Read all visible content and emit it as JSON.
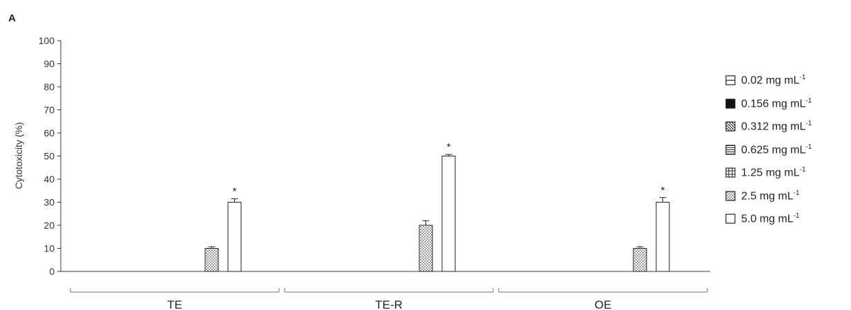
{
  "panel_label": "A",
  "chart_data": {
    "type": "bar",
    "ylabel": "Cytotoxicity (%)",
    "ylim": [
      0,
      100
    ],
    "yticks": [
      0,
      10,
      20,
      30,
      40,
      50,
      60,
      70,
      80,
      90,
      100
    ],
    "categories": [
      "TE",
      "TE-R",
      "OE"
    ],
    "legend_position": "right",
    "series": [
      {
        "name": "0.02 mg mL-1",
        "unit_base": "0.02 mg mL",
        "unit_sup": "-1",
        "pattern": "hline",
        "values": [
          0,
          0,
          0
        ],
        "errors": [
          0,
          0,
          0
        ],
        "significant": [
          false,
          false,
          false
        ]
      },
      {
        "name": "0.156 mg mL-1",
        "unit_base": "0.156 mg mL",
        "unit_sup": "-1",
        "pattern": "solid",
        "values": [
          0,
          0,
          0
        ],
        "errors": [
          0,
          0,
          0
        ],
        "significant": [
          false,
          false,
          false
        ]
      },
      {
        "name": "0.312 mg mL-1",
        "unit_base": "0.312 mg mL",
        "unit_sup": "-1",
        "pattern": "diag",
        "values": [
          0,
          0,
          0
        ],
        "errors": [
          0,
          0,
          0
        ],
        "significant": [
          false,
          false,
          false
        ]
      },
      {
        "name": "0.625 mg mL-1",
        "unit_base": "0.625 mg mL",
        "unit_sup": "-1",
        "pattern": "hlines-dense",
        "values": [
          0,
          0,
          0
        ],
        "errors": [
          0,
          0,
          0
        ],
        "significant": [
          false,
          false,
          false
        ]
      },
      {
        "name": "1.25 mg mL-1",
        "unit_base": "1.25 mg mL",
        "unit_sup": "-1",
        "pattern": "grid",
        "values": [
          0,
          0,
          0
        ],
        "errors": [
          0,
          0,
          0
        ],
        "significant": [
          false,
          false,
          false
        ]
      },
      {
        "name": "2.5 mg mL-1",
        "unit_base": "2.5 mg mL",
        "unit_sup": "-1",
        "pattern": "dots",
        "values": [
          10,
          20,
          10
        ],
        "errors": [
          0.7,
          2,
          0.7
        ],
        "significant": [
          false,
          false,
          false
        ]
      },
      {
        "name": "5.0 mg mL-1",
        "unit_base": "5.0 mg mL",
        "unit_sup": "-1",
        "pattern": "white",
        "values": [
          30,
          50,
          30
        ],
        "errors": [
          1.5,
          0.7,
          2
        ],
        "significant": [
          true,
          true,
          true
        ]
      }
    ],
    "significance_marker": "*"
  },
  "colors": {
    "bar_stroke": "#222222",
    "axis": "#333333",
    "dot_fill": "#555555"
  }
}
